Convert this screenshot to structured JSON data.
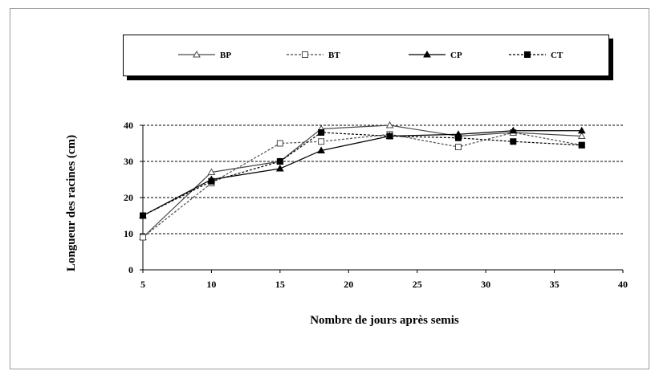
{
  "chart_data": {
    "type": "line",
    "title": "",
    "xlabel": "Nombre de jours après semis",
    "ylabel": "Longueur des racines (cm)",
    "xlim": [
      5,
      40
    ],
    "ylim": [
      0,
      40
    ],
    "xticks": [
      5,
      10,
      15,
      20,
      25,
      30,
      35,
      40
    ],
    "yticks": [
      0,
      10,
      20,
      30,
      40
    ],
    "grid": "horizontal-dashed",
    "legend_position": "top",
    "series": [
      {
        "name": "BP",
        "marker": "triangle-open",
        "dash": "solid",
        "color": "#4a4a4a",
        "x": [
          5,
          10,
          15,
          18,
          23,
          28,
          32,
          37
        ],
        "y": [
          9,
          27,
          30,
          39,
          40,
          37,
          38,
          37
        ]
      },
      {
        "name": "BT",
        "marker": "square-open",
        "dash": "dashed",
        "color": "#4a4a4a",
        "x": [
          5,
          10,
          15,
          18,
          23,
          28,
          32,
          37
        ],
        "y": [
          9,
          24,
          35,
          35.5,
          37.5,
          34,
          38,
          34.5
        ]
      },
      {
        "name": "CP",
        "marker": "triangle-filled",
        "dash": "solid",
        "color": "#000000",
        "x": [
          5,
          10,
          15,
          18,
          23,
          28,
          32,
          37
        ],
        "y": [
          15,
          25,
          28,
          33,
          37,
          37.5,
          38.5,
          38.5
        ]
      },
      {
        "name": "CT",
        "marker": "square-filled",
        "dash": "dashed",
        "color": "#000000",
        "x": [
          5,
          10,
          15,
          18,
          23,
          28,
          32,
          37
        ],
        "y": [
          15,
          24.5,
          30,
          38,
          37,
          36.5,
          35.5,
          34.5
        ]
      }
    ]
  }
}
